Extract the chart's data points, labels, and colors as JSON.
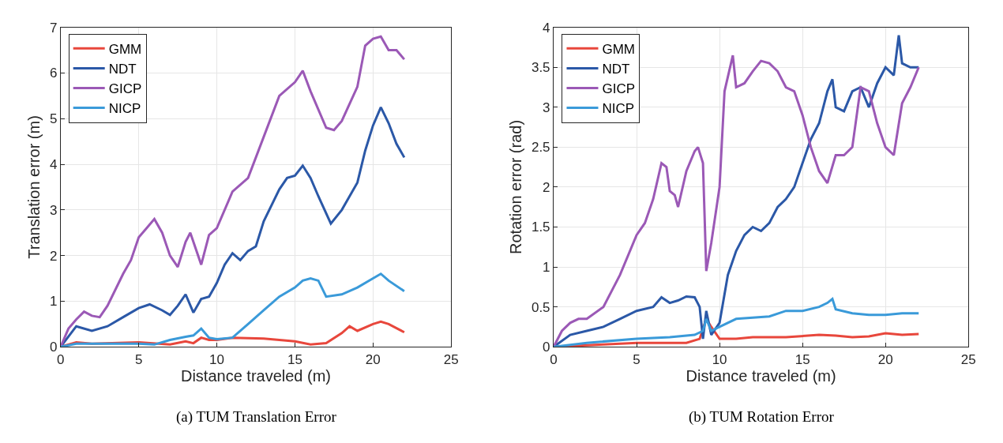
{
  "chart_data": [
    {
      "type": "line",
      "xlabel": "Distance traveled (m)",
      "ylabel": "Translation error (m)",
      "xlim": [
        0,
        25
      ],
      "xticks": [
        0,
        5,
        10,
        15,
        20,
        25
      ],
      "ylim": [
        0,
        7
      ],
      "yticks": [
        0,
        1,
        2,
        3,
        4,
        5,
        6,
        7
      ],
      "grid": true,
      "legend": "top left",
      "annotations": [
        "(a) TUM Translation Error"
      ],
      "series": [
        {
          "name": "GMM",
          "color": "#e8473c",
          "x": [
            0,
            1,
            2,
            5,
            7,
            8,
            8.5,
            9,
            9.5,
            10,
            11,
            13,
            15,
            16,
            17,
            18,
            18.5,
            19,
            20,
            20.5,
            21,
            22
          ],
          "values": [
            0,
            0.1,
            0.07,
            0.1,
            0.05,
            0.12,
            0.08,
            0.2,
            0.15,
            0.15,
            0.2,
            0.18,
            0.12,
            0.05,
            0.08,
            0.3,
            0.45,
            0.35,
            0.5,
            0.55,
            0.5,
            0.32
          ]
        },
        {
          "name": "NDT",
          "color": "#2b58a7",
          "x": [
            0,
            1,
            2,
            3,
            4,
            5,
            5.7,
            6.5,
            7,
            7.5,
            8,
            8.5,
            9,
            9.5,
            10,
            10.5,
            11,
            11.5,
            12,
            12.5,
            13,
            14,
            14.5,
            15,
            15.5,
            16,
            16.5,
            17.3,
            18,
            19,
            19.5,
            20,
            20.5,
            21,
            21.5,
            22
          ],
          "values": [
            0,
            0.45,
            0.35,
            0.45,
            0.65,
            0.85,
            0.93,
            0.8,
            0.7,
            0.9,
            1.15,
            0.75,
            1.05,
            1.1,
            1.4,
            1.8,
            2.05,
            1.9,
            2.1,
            2.2,
            2.75,
            3.45,
            3.7,
            3.75,
            3.97,
            3.7,
            3.3,
            2.7,
            3.0,
            3.6,
            4.3,
            4.85,
            5.25,
            4.9,
            4.45,
            4.15
          ]
        },
        {
          "name": "GICP",
          "color": "#9b59b6",
          "x": [
            0,
            0.5,
            1,
            1.5,
            2,
            2.5,
            3,
            4,
            4.5,
            5,
            5.5,
            6,
            6.5,
            7,
            7.5,
            8,
            8.3,
            9,
            9.5,
            10,
            11,
            12,
            13,
            14,
            15,
            15.5,
            16,
            17,
            17.5,
            18,
            19,
            19.5,
            20,
            20.5,
            21,
            21.5,
            22
          ],
          "values": [
            0,
            0.4,
            0.6,
            0.77,
            0.68,
            0.65,
            0.9,
            1.6,
            1.9,
            2.4,
            2.6,
            2.8,
            2.5,
            2.0,
            1.75,
            2.3,
            2.5,
            1.8,
            2.45,
            2.6,
            3.4,
            3.7,
            4.6,
            5.5,
            5.8,
            6.05,
            5.6,
            4.8,
            4.75,
            4.95,
            5.7,
            6.6,
            6.75,
            6.8,
            6.5,
            6.5,
            6.3
          ]
        },
        {
          "name": "NICP",
          "color": "#3a9ad9",
          "x": [
            0,
            1,
            3,
            5,
            6,
            7,
            8,
            8.5,
            9,
            9.5,
            10,
            11,
            12,
            13,
            14,
            15,
            15.5,
            16,
            16.5,
            17,
            18,
            19,
            20,
            20.5,
            21,
            22
          ],
          "values": [
            0,
            0.07,
            0.07,
            0.07,
            0.05,
            0.15,
            0.22,
            0.25,
            0.4,
            0.2,
            0.17,
            0.2,
            0.5,
            0.8,
            1.1,
            1.3,
            1.45,
            1.5,
            1.45,
            1.1,
            1.15,
            1.3,
            1.5,
            1.6,
            1.45,
            1.22
          ]
        }
      ]
    },
    {
      "type": "line",
      "xlabel": "Distance traveled (m)",
      "ylabel": "Rotation error (rad)",
      "xlim": [
        0,
        25
      ],
      "xticks": [
        0,
        5,
        10,
        15,
        20,
        25
      ],
      "ylim": [
        0,
        4
      ],
      "yticks": [
        0,
        0.5,
        1,
        1.5,
        2,
        2.5,
        3,
        3.5,
        4
      ],
      "grid": true,
      "legend": "top left",
      "annotations": [
        "(b) TUM Rotation Error"
      ],
      "series": [
        {
          "name": "GMM",
          "color": "#e8473c",
          "x": [
            0,
            3,
            5,
            8,
            8.8,
            9.2,
            9.5,
            10,
            11,
            12,
            14,
            16,
            17,
            18,
            19,
            20,
            21,
            22
          ],
          "values": [
            0,
            0.03,
            0.05,
            0.05,
            0.1,
            0.35,
            0.25,
            0.1,
            0.1,
            0.12,
            0.12,
            0.15,
            0.14,
            0.12,
            0.13,
            0.17,
            0.15,
            0.16
          ]
        },
        {
          "name": "NDT",
          "color": "#2b58a7",
          "x": [
            0,
            1,
            2,
            3,
            4,
            5,
            6,
            6.5,
            7,
            7.5,
            8,
            8.5,
            8.8,
            9,
            9.2,
            9.5,
            10,
            10.5,
            11,
            11.5,
            12,
            12.5,
            13,
            13.5,
            14,
            14.5,
            15,
            15.5,
            16,
            16.5,
            16.8,
            17,
            17.5,
            18,
            18.5,
            19,
            19.5,
            20,
            20.5,
            20.8,
            21,
            21.5,
            22
          ],
          "values": [
            0,
            0.15,
            0.2,
            0.25,
            0.35,
            0.45,
            0.5,
            0.62,
            0.55,
            0.58,
            0.63,
            0.62,
            0.5,
            0.1,
            0.45,
            0.15,
            0.3,
            0.9,
            1.2,
            1.4,
            1.5,
            1.45,
            1.55,
            1.75,
            1.85,
            2.0,
            2.3,
            2.6,
            2.8,
            3.2,
            3.35,
            3.0,
            2.95,
            3.2,
            3.25,
            3.0,
            3.3,
            3.5,
            3.4,
            3.9,
            3.55,
            3.5,
            3.5
          ]
        },
        {
          "name": "GICP",
          "color": "#9b59b6",
          "x": [
            0,
            0.5,
            1,
            1.5,
            2,
            3,
            4,
            5,
            5.5,
            6,
            6.5,
            6.8,
            7,
            7.3,
            7.5,
            8,
            8.5,
            8.7,
            9,
            9.2,
            9.5,
            10,
            10.3,
            10.8,
            11,
            11.5,
            12,
            12.5,
            13,
            13.5,
            14,
            14.5,
            15,
            15.5,
            16,
            16.5,
            17,
            17.5,
            18,
            18.5,
            19,
            19.5,
            20,
            20.5,
            21,
            21.5,
            22
          ],
          "values": [
            0,
            0.2,
            0.3,
            0.35,
            0.35,
            0.5,
            0.9,
            1.4,
            1.55,
            1.85,
            2.3,
            2.25,
            1.95,
            1.9,
            1.75,
            2.2,
            2.45,
            2.5,
            2.3,
            0.95,
            1.3,
            2.0,
            3.2,
            3.65,
            3.25,
            3.3,
            3.45,
            3.58,
            3.55,
            3.45,
            3.25,
            3.2,
            2.9,
            2.5,
            2.2,
            2.05,
            2.4,
            2.4,
            2.5,
            3.25,
            3.2,
            2.8,
            2.5,
            2.4,
            3.05,
            3.25,
            3.5
          ]
        },
        {
          "name": "NICP",
          "color": "#3a9ad9",
          "x": [
            0,
            2,
            5,
            7,
            8.5,
            9,
            9.2,
            9.5,
            10,
            11,
            13,
            14,
            15,
            16,
            16.5,
            16.8,
            17,
            18,
            19,
            20,
            21,
            22
          ],
          "values": [
            0,
            0.05,
            0.1,
            0.12,
            0.15,
            0.2,
            0.35,
            0.2,
            0.25,
            0.35,
            0.38,
            0.45,
            0.45,
            0.5,
            0.55,
            0.6,
            0.47,
            0.42,
            0.4,
            0.4,
            0.42,
            0.42
          ]
        }
      ]
    }
  ]
}
